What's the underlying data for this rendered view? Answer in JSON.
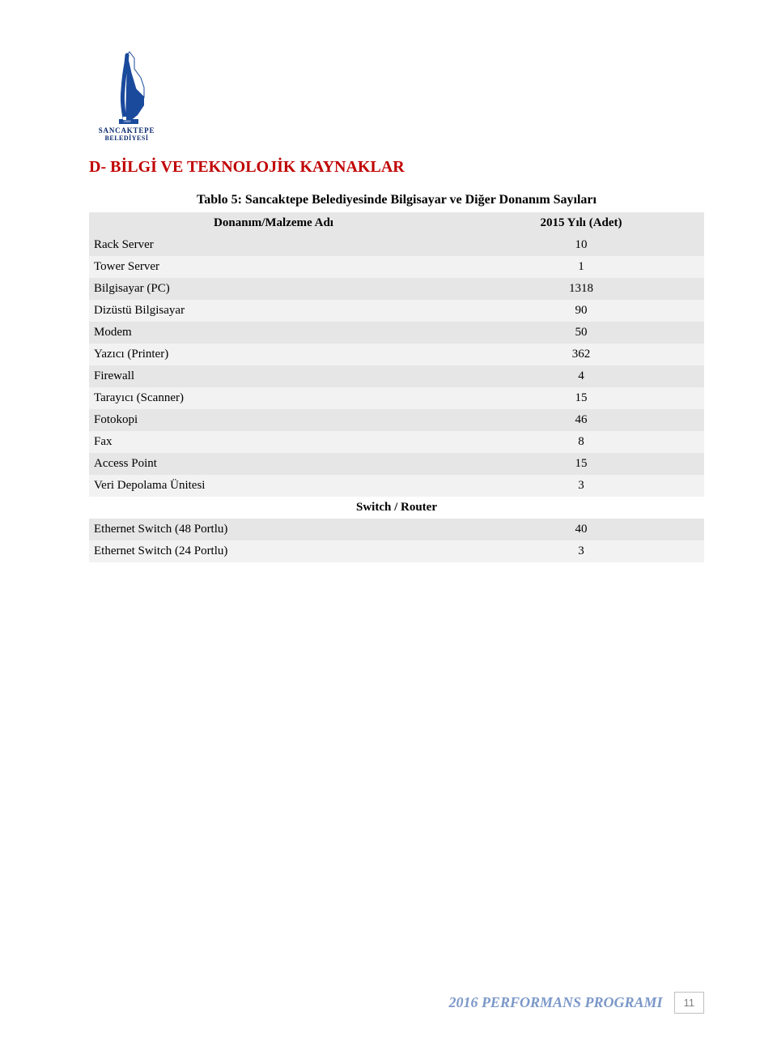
{
  "logo": {
    "top_text": "SANCAKTEPE",
    "bottom_text": "BELEDİYESİ",
    "blue": "#1a4a9c",
    "white": "#ffffff"
  },
  "section_title": "D- BİLGİ VE TEKNOLOJİK KAYNAKLAR",
  "table": {
    "title": "Tablo 5: Sancaktepe Belediyesinde Bilgisayar ve Diğer Donanım Sayıları",
    "columns": [
      "Donanım/Malzeme Adı",
      "2015 Yılı (Adet)"
    ],
    "rows": [
      {
        "label": "Rack Server",
        "value": "10"
      },
      {
        "label": "Tower Server",
        "value": "1"
      },
      {
        "label": "Bilgisayar (PC)",
        "value": "1318"
      },
      {
        "label": "Dizüstü Bilgisayar",
        "value": "90"
      },
      {
        "label": "Modem",
        "value": "50"
      },
      {
        "label": "Yazıcı (Printer)",
        "value": "362"
      },
      {
        "label": "Firewall",
        "value": "4"
      },
      {
        "label": "Tarayıcı (Scanner)",
        "value": "15"
      },
      {
        "label": "Fotokopi",
        "value": "46"
      },
      {
        "label": "Fax",
        "value": "8"
      },
      {
        "label": "Access Point",
        "value": "15"
      },
      {
        "label": "Veri Depolama Ünitesi",
        "value": "3"
      }
    ],
    "separator": "Switch / Router",
    "rows2": [
      {
        "label": "Ethernet Switch (48 Portlu)",
        "value": "40"
      },
      {
        "label": "Ethernet Switch (24 Portlu)",
        "value": "3"
      }
    ],
    "stripe_a": "#e7e6e6",
    "stripe_b": "#f3f2f2"
  },
  "footer": {
    "text": "2016 PERFORMANS PROGRAMI",
    "page_number": "11",
    "text_color": "#7b98c9"
  }
}
